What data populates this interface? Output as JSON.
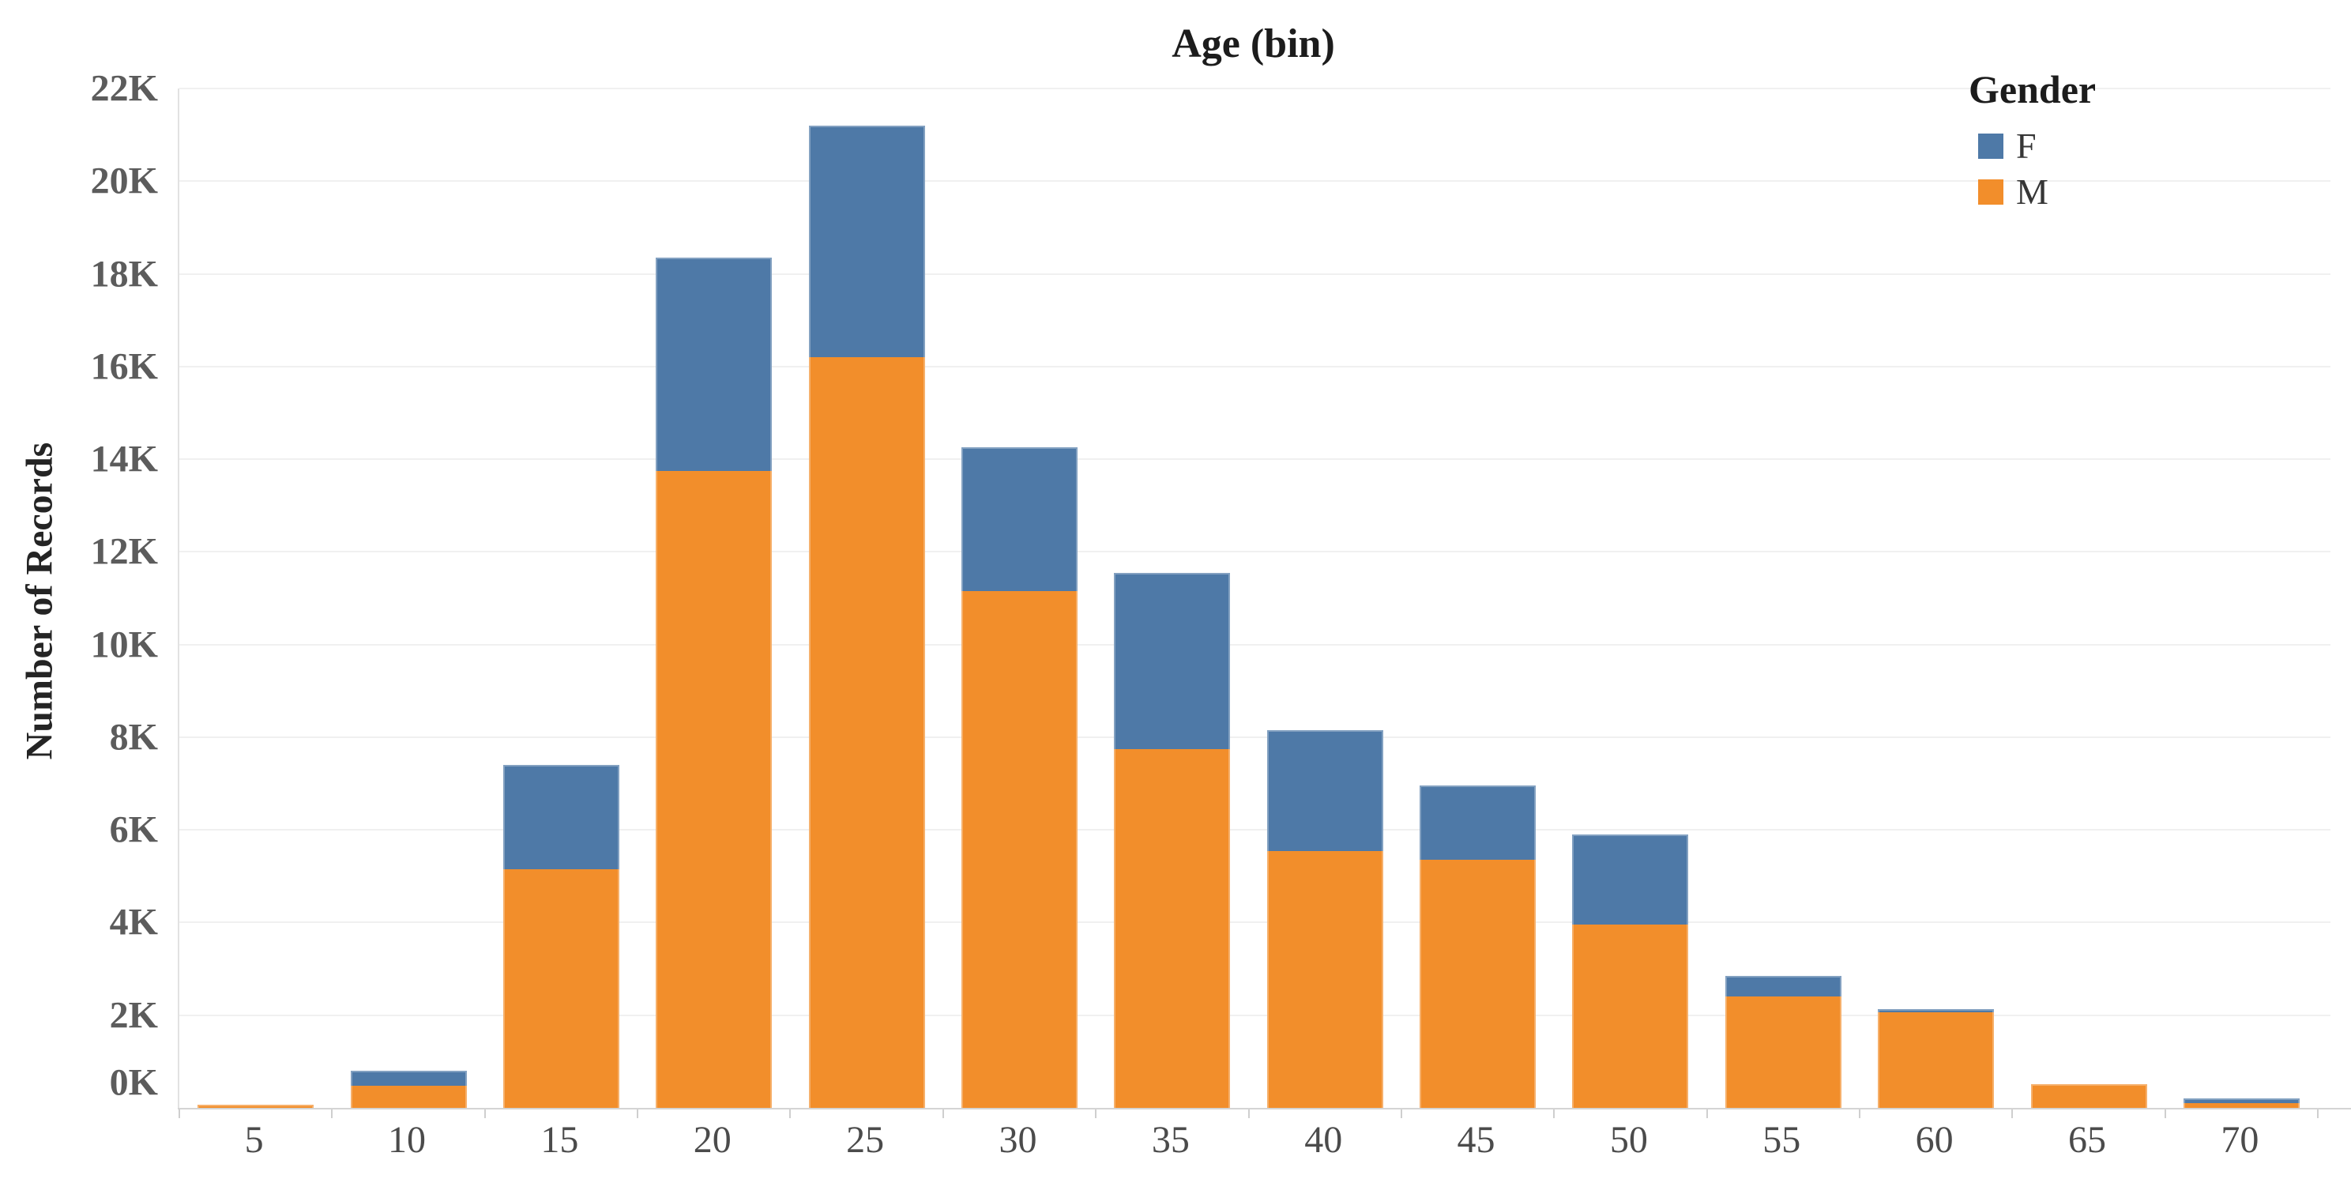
{
  "title": "Age (bin)",
  "y_axis": {
    "title": "Number of Records",
    "tick_labels": [
      "0K",
      "2K",
      "4K",
      "6K",
      "8K",
      "10K",
      "12K",
      "14K",
      "16K",
      "18K",
      "20K",
      "22K"
    ]
  },
  "legend": {
    "title": "Gender",
    "items": [
      {
        "label": "F",
        "color": "#4E79A7",
        "icon": "legend-swatch-f-icon"
      },
      {
        "label": "M",
        "color": "#F28E2B",
        "icon": "legend-swatch-m-icon"
      }
    ]
  },
  "chart_data": {
    "type": "bar",
    "stacked": true,
    "title": "Age (bin)",
    "xlabel": "",
    "ylabel": "Number of Records",
    "categories": [
      "5",
      "10",
      "15",
      "20",
      "25",
      "30",
      "35",
      "40",
      "45",
      "50",
      "55",
      "60",
      "65",
      "70"
    ],
    "series": [
      {
        "name": "M",
        "color": "#F28E2B",
        "values": [
          60,
          480,
          5150,
          13750,
          16200,
          11150,
          7750,
          5550,
          5350,
          3950,
          2400,
          2070,
          520,
          110
        ]
      },
      {
        "name": "F",
        "color": "#4E79A7",
        "values": [
          0,
          320,
          2250,
          4600,
          5000,
          3100,
          3800,
          2600,
          1600,
          1950,
          450,
          60,
          0,
          90
        ]
      }
    ],
    "totals": [
      60,
      800,
      7400,
      18350,
      21200,
      14250,
      11550,
      8150,
      6950,
      5900,
      2850,
      2130,
      520,
      200
    ],
    "ylim": [
      0,
      22000
    ],
    "ytick_step": 2000,
    "grid": true,
    "legend_position": "top-right",
    "colors": {
      "F": "#4E79A7",
      "M": "#F28E2B",
      "gridline": "#f0f0f0",
      "axis_line": "#d4d4d4",
      "tick_label": "#5c5c5c"
    }
  }
}
